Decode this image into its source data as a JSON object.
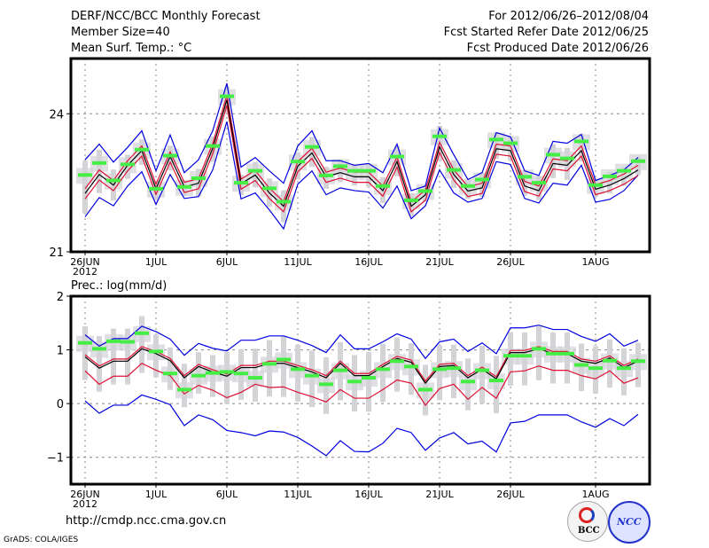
{
  "header": {
    "title": "DERF/NCC/BCC Monthly Forecast",
    "member_size": "Member Size=40",
    "variable": "Mean Surf. Temp.: °C",
    "period": "For 2012/06/26–2012/08/04",
    "start_date": "Fcst Started Refer Date 2012/06/25",
    "produced_date": "Fcst Produced Date 2012/06/26"
  },
  "footer": {
    "url": "http://cmdp.ncc.cma.gov.cn",
    "credit": "GrADS: COLA/IGES",
    "logos": [
      "BCC",
      "NCC"
    ]
  },
  "colors": {
    "ensemble_mean": "#000000",
    "inner_spread": "#dd1133",
    "outer_spread": "#0000dd",
    "member_bar": "#d3d3d8",
    "marker": "#44ee44"
  },
  "chart_data": [
    {
      "type": "line",
      "title": "Mean Surf. Temp.: °C",
      "xlabel": "",
      "ylabel": "",
      "ylim": [
        21,
        25.2
      ],
      "yticks": [
        21,
        24
      ],
      "xticks": [
        {
          "day": 0,
          "label": "26JUN",
          "sub": "2012"
        },
        {
          "day": 5,
          "label": "1JUL"
        },
        {
          "day": 10,
          "label": "6JUL"
        },
        {
          "day": 15,
          "label": "11JUL"
        },
        {
          "day": 20,
          "label": "16JUL"
        },
        {
          "day": 25,
          "label": "21JUL"
        },
        {
          "day": 30,
          "label": "26JUL"
        },
        {
          "day": 36,
          "label": "1AUG"
        }
      ],
      "grid": true,
      "n_days": 40,
      "series": [
        {
          "name": "mean",
          "values": [
            22.27,
            22.68,
            22.45,
            22.88,
            23.2,
            22.37,
            23.07,
            22.41,
            22.49,
            23.25,
            24.3,
            22.48,
            22.67,
            22.28,
            21.99,
            22.86,
            23.15,
            22.63,
            22.72,
            22.63,
            22.63,
            22.33,
            22.96,
            21.99,
            22.24,
            23.28,
            22.68,
            22.32,
            22.39,
            23.24,
            23.2,
            22.43,
            22.33,
            22.92,
            22.88,
            23.2,
            22.36,
            22.45,
            22.59,
            22.78
          ]
        },
        {
          "name": "marker",
          "values": [
            22.67,
            22.93,
            22.55,
            22.9,
            23.22,
            22.37,
            23.09,
            22.41,
            22.6,
            23.3,
            24.38,
            22.5,
            22.76,
            22.38,
            22.09,
            22.96,
            23.28,
            22.66,
            22.86,
            22.76,
            22.76,
            22.43,
            23.07,
            22.12,
            22.32,
            23.51,
            22.78,
            22.43,
            22.57,
            23.44,
            23.36,
            22.63,
            22.5,
            23.11,
            23.03,
            23.4,
            22.45,
            22.64,
            22.76,
            22.97
          ]
        },
        {
          "name": "upper",
          "values": [
            23.0,
            23.34,
            22.95,
            23.27,
            23.63,
            22.76,
            23.54,
            22.72,
            23.0,
            23.63,
            24.66,
            22.84,
            23.05,
            22.76,
            22.49,
            23.3,
            23.63,
            22.98,
            22.98,
            22.88,
            22.92,
            22.72,
            23.34,
            22.33,
            22.43,
            23.69,
            23.11,
            22.57,
            22.72,
            23.59,
            23.5,
            22.76,
            22.66,
            23.4,
            23.36,
            23.55,
            22.55,
            22.66,
            22.78,
            23.05
          ]
        },
        {
          "name": "lower",
          "values": [
            21.76,
            22.18,
            22.0,
            22.43,
            22.74,
            22.03,
            22.68,
            22.16,
            22.2,
            22.78,
            23.83,
            22.15,
            22.28,
            21.91,
            21.5,
            22.47,
            22.76,
            22.24,
            22.39,
            22.33,
            22.3,
            21.95,
            22.43,
            21.72,
            22.0,
            22.78,
            22.28,
            22.08,
            22.16,
            22.96,
            22.9,
            22.16,
            22.06,
            22.49,
            22.45,
            22.88,
            22.08,
            22.14,
            22.33,
            22.67
          ]
        }
      ]
    },
    {
      "type": "line",
      "title": "Prec.: log(mm/d)",
      "xlabel": "",
      "ylabel": "",
      "ylim": [
        -1.5,
        2
      ],
      "yticks": [
        -1,
        0,
        1,
        2
      ],
      "xticks": [
        {
          "day": 0,
          "label": "26JUN",
          "sub": "2012"
        },
        {
          "day": 5,
          "label": "1JUL"
        },
        {
          "day": 10,
          "label": "6JUL"
        },
        {
          "day": 15,
          "label": "11JUL"
        },
        {
          "day": 20,
          "label": "16JUL"
        },
        {
          "day": 25,
          "label": "21JUL"
        },
        {
          "day": 30,
          "label": "26JUL"
        },
        {
          "day": 36,
          "label": "1AUG"
        }
      ],
      "grid": true,
      "n_days": 40,
      "series": [
        {
          "name": "mean",
          "values": [
            0.87,
            0.66,
            0.79,
            0.79,
            1.02,
            0.93,
            0.8,
            0.48,
            0.69,
            0.59,
            0.51,
            0.67,
            0.67,
            0.75,
            0.75,
            0.67,
            0.59,
            0.48,
            0.75,
            0.52,
            0.52,
            0.69,
            0.84,
            0.77,
            0.38,
            0.69,
            0.71,
            0.48,
            0.64,
            0.46,
            0.95,
            0.95,
            1.02,
            0.93,
            0.93,
            0.79,
            0.75,
            0.85,
            0.67,
            0.79
          ]
        },
        {
          "name": "marker",
          "values": [
            1.13,
            1.02,
            1.16,
            1.15,
            1.31,
            0.97,
            0.56,
            0.26,
            0.52,
            0.57,
            0.59,
            0.56,
            0.48,
            0.74,
            0.82,
            0.64,
            0.52,
            0.36,
            0.62,
            0.41,
            0.48,
            0.64,
            0.79,
            0.69,
            0.26,
            0.64,
            0.66,
            0.41,
            0.62,
            0.43,
            0.89,
            0.89,
            1.02,
            0.93,
            0.93,
            0.72,
            0.66,
            0.8,
            0.66,
            0.79
          ]
        },
        {
          "name": "upper",
          "values": [
            1.28,
            1.07,
            1.21,
            1.21,
            1.44,
            1.34,
            1.2,
            0.9,
            1.12,
            1.03,
            0.98,
            1.18,
            1.18,
            1.26,
            1.26,
            1.18,
            1.08,
            0.95,
            1.28,
            1.02,
            1.02,
            1.15,
            1.3,
            1.2,
            0.84,
            1.15,
            1.2,
            0.97,
            1.13,
            0.93,
            1.41,
            1.41,
            1.46,
            1.38,
            1.38,
            1.25,
            1.16,
            1.3,
            1.07,
            1.18
          ]
        },
        {
          "name": "lower",
          "values": [
            0.05,
            -0.18,
            -0.03,
            -0.03,
            0.16,
            0.08,
            -0.02,
            -0.41,
            -0.21,
            -0.3,
            -0.5,
            -0.54,
            -0.6,
            -0.51,
            -0.53,
            -0.63,
            -0.79,
            -0.97,
            -0.69,
            -0.89,
            -0.9,
            -0.74,
            -0.46,
            -0.54,
            -0.87,
            -0.64,
            -0.54,
            -0.75,
            -0.7,
            -0.9,
            -0.36,
            -0.33,
            -0.21,
            -0.21,
            -0.21,
            -0.34,
            -0.44,
            -0.28,
            -0.41,
            -0.2
          ]
        },
        {
          "name": "inner_low",
          "values": [
            0.61,
            0.36,
            0.51,
            0.51,
            0.75,
            0.62,
            0.52,
            0.18,
            0.34,
            0.25,
            0.11,
            0.21,
            0.36,
            0.3,
            0.31,
            0.21,
            0.13,
            0.03,
            0.26,
            0.1,
            0.1,
            0.26,
            0.44,
            0.38,
            -0.03,
            0.28,
            0.36,
            0.08,
            0.3,
            0.1,
            0.59,
            0.61,
            0.7,
            0.62,
            0.62,
            0.52,
            0.46,
            0.61,
            0.38,
            0.48
          ]
        }
      ]
    }
  ]
}
